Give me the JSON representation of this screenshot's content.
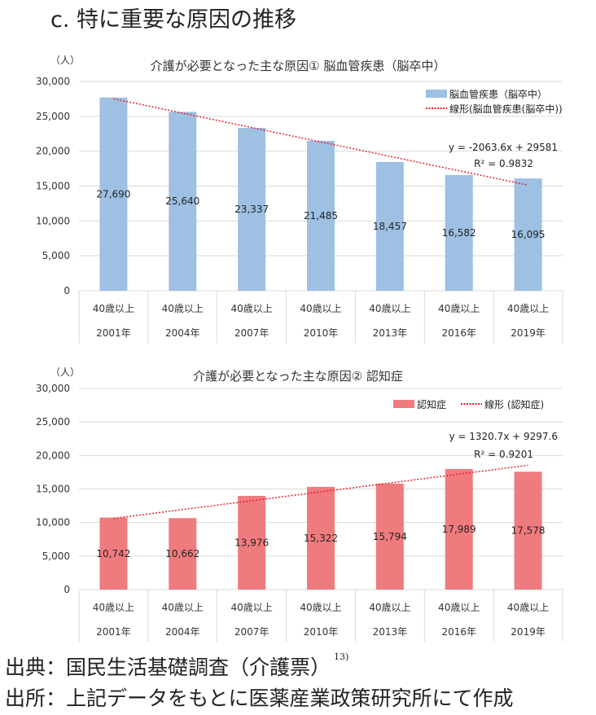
{
  "heading": "c.  特に重要な原因の推移",
  "footer": {
    "source_line": "出典：国民生活基礎調査（介護票）",
    "source_ref": "13)",
    "made_by_line": "出所：上記データをもとに医薬産業政策研究所にて作成"
  },
  "chart_data": [
    {
      "type": "bar",
      "title": "介護が必要となった主な原因①  脳血管疾患（脳卒中）",
      "unit_label": "（人）",
      "categories": [
        [
          "40歳以上",
          "2001年"
        ],
        [
          "40歳以上",
          "2004年"
        ],
        [
          "40歳以上",
          "2007年"
        ],
        [
          "40歳以上",
          "2010年"
        ],
        [
          "40歳以上",
          "2013年"
        ],
        [
          "40歳以上",
          "2016年"
        ],
        [
          "40歳以上",
          "2019年"
        ]
      ],
      "series": [
        {
          "name": "脳血管疾患（脳卒中）",
          "values": [
            27690,
            25640,
            23337,
            21485,
            18457,
            16582,
            16095
          ],
          "color": "#9dc0e3"
        }
      ],
      "data_labels": [
        "27,690",
        "25,640",
        "23,337",
        "21,485",
        "18,457",
        "16,582",
        "16,095"
      ],
      "trendline": {
        "name": "線形(脳血管疾患(脳卒中))",
        "slope": -2063.6,
        "intercept": 29581,
        "equation": "y = -2063.6x + 29581",
        "r2": "R² = 0.9832",
        "color": "#e8202a"
      },
      "ylim": [
        0,
        30000
      ],
      "yticks": [
        "0",
        "5,000",
        "10,000",
        "15,000",
        "20,000",
        "25,000",
        "30,000"
      ],
      "grid": true,
      "legend": "top-right"
    },
    {
      "type": "bar",
      "title": "介護が必要となった主な原因②  認知症",
      "unit_label": "（人）",
      "categories": [
        [
          "40歳以上",
          "2001年"
        ],
        [
          "40歳以上",
          "2004年"
        ],
        [
          "40歳以上",
          "2007年"
        ],
        [
          "40歳以上",
          "2010年"
        ],
        [
          "40歳以上",
          "2013年"
        ],
        [
          "40歳以上",
          "2016年"
        ],
        [
          "40歳以上",
          "2019年"
        ]
      ],
      "series": [
        {
          "name": "認知症",
          "values": [
            10742,
            10662,
            13976,
            15322,
            15794,
            17989,
            17578
          ],
          "color": "#f07b7e"
        }
      ],
      "data_labels": [
        "10,742",
        "10,662",
        "13,976",
        "15,322",
        "15,794",
        "17,989",
        "17,578"
      ],
      "trendline": {
        "name": "線形 (認知症)",
        "slope": 1320.7,
        "intercept": 9297.6,
        "equation": "y = 1320.7x + 9297.6",
        "r2": "R² = 0.9201",
        "color": "#e8202a"
      },
      "ylim": [
        0,
        30000
      ],
      "yticks": [
        "0",
        "5,000",
        "10,000",
        "15,000",
        "20,000",
        "25,000",
        "30,000"
      ],
      "grid": true,
      "legend": "top-right"
    }
  ]
}
